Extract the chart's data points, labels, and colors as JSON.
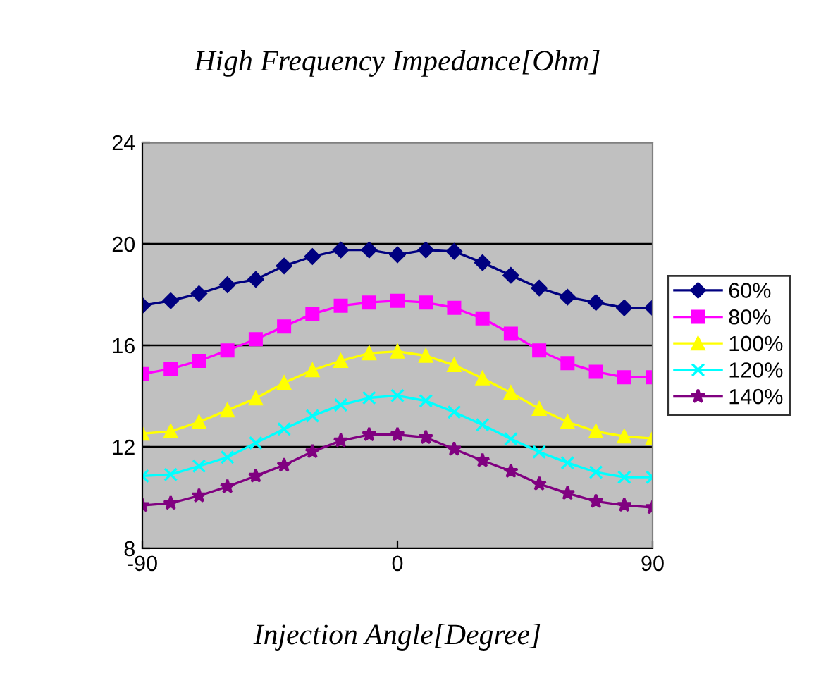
{
  "chart_data": {
    "type": "line",
    "title": "High Frequency Impedance[Ohm]",
    "xlabel": "Injection Angle[Degree]",
    "x": [
      -90,
      -80,
      -70,
      -60,
      -50,
      -40,
      -30,
      -20,
      -10,
      0,
      10,
      20,
      30,
      40,
      50,
      60,
      70,
      80,
      90
    ],
    "series": [
      {
        "name": "60%",
        "color": "#000080",
        "marker": "diamond",
        "values": [
          17.57,
          17.76,
          18.04,
          18.39,
          18.6,
          19.13,
          19.5,
          19.76,
          19.76,
          19.57,
          19.76,
          19.7,
          19.26,
          18.76,
          18.26,
          17.9,
          17.69,
          17.48,
          17.48
        ]
      },
      {
        "name": "80%",
        "color": "#ff00ff",
        "marker": "square",
        "values": [
          14.87,
          15.07,
          15.39,
          15.8,
          16.24,
          16.74,
          17.24,
          17.56,
          17.69,
          17.76,
          17.69,
          17.48,
          17.06,
          16.46,
          15.8,
          15.3,
          14.96,
          14.74,
          14.74
        ]
      },
      {
        "name": "100%",
        "color": "#ffff00",
        "marker": "triangle",
        "values": [
          12.52,
          12.61,
          12.98,
          13.44,
          13.91,
          14.52,
          15.02,
          15.39,
          15.69,
          15.76,
          15.59,
          15.22,
          14.7,
          14.13,
          13.5,
          12.98,
          12.61,
          12.41,
          12.33
        ]
      },
      {
        "name": "120%",
        "color": "#00ffff",
        "marker": "cross",
        "values": [
          10.85,
          10.91,
          11.24,
          11.59,
          12.15,
          12.7,
          13.22,
          13.65,
          13.93,
          14.02,
          13.81,
          13.37,
          12.87,
          12.31,
          11.8,
          11.37,
          11.0,
          10.8,
          10.8
        ]
      },
      {
        "name": "140%",
        "color": "#800080",
        "marker": "star",
        "values": [
          9.69,
          9.78,
          10.07,
          10.43,
          10.85,
          11.28,
          11.81,
          12.24,
          12.48,
          12.48,
          12.37,
          11.91,
          11.46,
          11.04,
          10.54,
          10.17,
          9.85,
          9.7,
          9.61
        ]
      }
    ],
    "xlim": [
      -90,
      90
    ],
    "xticks": [
      -90,
      0,
      90
    ],
    "ylim": [
      8,
      24
    ],
    "yticks": [
      8,
      12,
      16,
      20,
      24
    ],
    "grid": "y",
    "legend": "right",
    "line_style": "solid"
  }
}
